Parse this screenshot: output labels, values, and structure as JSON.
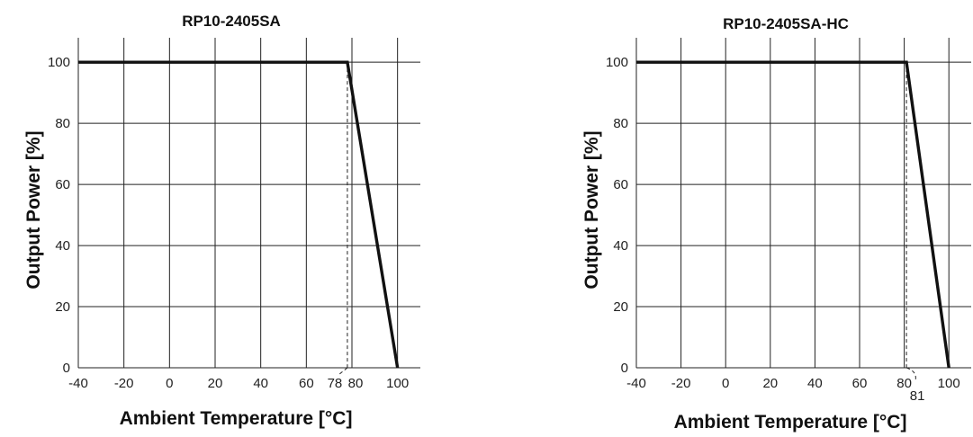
{
  "chart_data": [
    {
      "type": "line",
      "title": "RP10-2405SA",
      "xlabel": "Ambient Temperature [°C]",
      "ylabel": "Output Power [%]",
      "xlim": [
        -40,
        110
      ],
      "ylim": [
        0,
        108
      ],
      "x_ticks": [
        "-40",
        "-20",
        "0",
        "20",
        "40",
        "60",
        "80",
        "100"
      ],
      "y_ticks": [
        "0",
        "20",
        "40",
        "60",
        "80",
        "100"
      ],
      "grid": true,
      "series": [
        {
          "x": [
            -40,
            78,
            100
          ],
          "y": [
            100,
            100,
            0
          ]
        }
      ],
      "annotation": {
        "x": 78,
        "label": "78"
      }
    },
    {
      "type": "line",
      "title": "RP10-2405SA-HC",
      "xlabel": "Ambient Temperature [°C]",
      "ylabel": "Output Power [%]",
      "xlim": [
        -40,
        110
      ],
      "ylim": [
        0,
        108
      ],
      "x_ticks": [
        "-40",
        "-20",
        "0",
        "20",
        "40",
        "60",
        "80",
        "100"
      ],
      "y_ticks": [
        "0",
        "20",
        "40",
        "60",
        "80",
        "100"
      ],
      "grid": true,
      "series": [
        {
          "x": [
            -40,
            81,
            100
          ],
          "y": [
            100,
            100,
            0
          ]
        }
      ],
      "annotation": {
        "x": 81,
        "label": "81"
      }
    }
  ]
}
